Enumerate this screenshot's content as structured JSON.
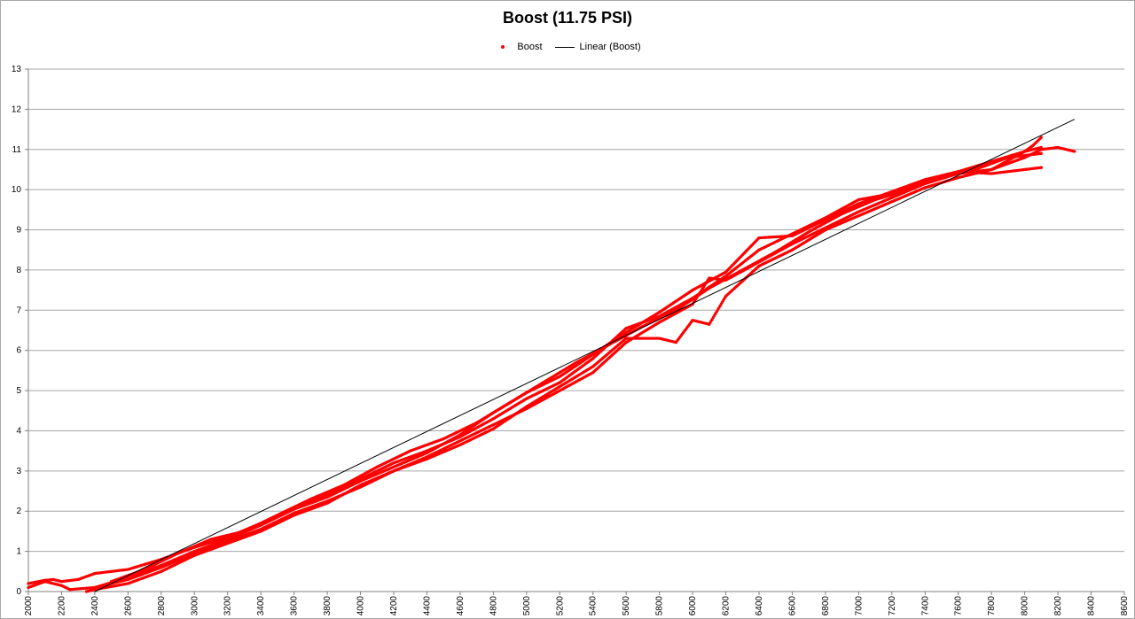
{
  "chart_data": {
    "type": "scatter",
    "title": "Boost (11.75 PSI)",
    "legend": {
      "position": "top",
      "entries": [
        "Boost",
        "Linear (Boost)"
      ]
    },
    "xlabel": "",
    "ylabel": "",
    "xlim": [
      2000,
      8600
    ],
    "ylim": [
      0,
      13
    ],
    "x_ticks": [
      2000,
      2200,
      2400,
      2600,
      2800,
      3000,
      3200,
      3400,
      3600,
      3800,
      4000,
      4200,
      4400,
      4600,
      4800,
      5000,
      5200,
      5400,
      5600,
      5800,
      6000,
      6200,
      6400,
      6600,
      6800,
      7000,
      7200,
      7400,
      7600,
      7800,
      8000,
      8200,
      8400,
      8600
    ],
    "y_ticks": [
      0,
      1,
      2,
      3,
      4,
      5,
      6,
      7,
      8,
      9,
      10,
      11,
      12,
      13
    ],
    "grid": {
      "horizontal": true,
      "vertical": false
    },
    "colors": {
      "points": "#ff0000",
      "trend": "#000000",
      "grid": "#a6a6a6"
    },
    "series": [
      {
        "name": "Boost",
        "runs": [
          {
            "x": [
              2000,
              2100,
              2150,
              2200,
              2300,
              2400,
              2600,
              2800,
              3000,
              3200,
              3400,
              3600,
              3800,
              4000,
              4200,
              4400,
              4600,
              4800,
              5000,
              5200,
              5400,
              5600,
              5800,
              6000,
              6200,
              6400,
              6600,
              6800,
              7000,
              7200,
              7400,
              7600,
              7800,
              8000,
              8050,
              8100
            ],
            "y": [
              0.2,
              0.28,
              0.3,
              0.25,
              0.3,
              0.45,
              0.55,
              0.8,
              1.1,
              1.35,
              1.7,
              2.1,
              2.4,
              2.8,
              3.2,
              3.5,
              3.85,
              4.3,
              4.8,
              5.2,
              5.8,
              6.55,
              6.85,
              7.3,
              7.85,
              8.5,
              8.9,
              9.3,
              9.75,
              9.9,
              10.2,
              10.45,
              10.7,
              10.95,
              11.1,
              11.3
            ]
          },
          {
            "x": [
              2000,
              2100,
              2200,
              2250,
              2400,
              2600,
              2800,
              3000,
              3200,
              3400,
              3600,
              3800,
              4000,
              4200,
              4400,
              4600,
              4800,
              5000,
              5200,
              5400,
              5600,
              5800,
              6000,
              6100,
              6200,
              6400,
              6600,
              6800,
              7000,
              7200,
              7400,
              7600,
              7800,
              8000,
              8100
            ],
            "y": [
              0.1,
              0.25,
              0.15,
              0.05,
              0.1,
              0.3,
              0.6,
              0.95,
              1.25,
              1.55,
              1.95,
              2.25,
              2.6,
              3.0,
              3.35,
              3.75,
              4.15,
              4.55,
              5.0,
              5.45,
              6.2,
              6.7,
              7.15,
              7.8,
              7.75,
              8.2,
              8.65,
              9.05,
              9.45,
              9.8,
              10.15,
              10.4,
              10.5,
              10.95,
              11.05
            ]
          },
          {
            "x": [
              2350,
              2400,
              2600,
              2800,
              3000,
              3200,
              3400,
              3600,
              3800,
              4000,
              4200,
              4400,
              4600,
              4800,
              5000,
              5200,
              5400,
              5600,
              5800,
              5900,
              6000,
              6100,
              6200,
              6400,
              6600,
              6800,
              7000,
              7200,
              7400,
              7600,
              7800,
              8000,
              8100,
              8200,
              8300
            ],
            "y": [
              0.0,
              0.05,
              0.2,
              0.5,
              0.9,
              1.2,
              1.5,
              1.9,
              2.2,
              2.65,
              3.0,
              3.3,
              3.65,
              4.05,
              4.6,
              5.1,
              5.6,
              6.3,
              6.3,
              6.2,
              6.75,
              6.65,
              7.35,
              8.1,
              8.5,
              9.0,
              9.35,
              9.7,
              10.05,
              10.3,
              10.5,
              10.8,
              11.0,
              11.05,
              10.95
            ]
          },
          {
            "x": [
              2400,
              2600,
              2800,
              3000,
              3200,
              3400,
              3600,
              3800,
              4000,
              4200,
              4400,
              4600,
              4800,
              5000,
              5200,
              5400,
              5600,
              5800,
              6000,
              6200,
              6400,
              6600,
              6800,
              7000,
              7200,
              7400,
              7600,
              7800,
              8000,
              8100
            ],
            "y": [
              0.1,
              0.35,
              0.65,
              1.0,
              1.3,
              1.65,
              2.05,
              2.35,
              2.75,
              3.1,
              3.45,
              3.9,
              4.45,
              4.95,
              5.35,
              5.9,
              6.45,
              6.95,
              7.5,
              7.95,
              8.8,
              8.85,
              9.25,
              9.65,
              9.95,
              10.25,
              10.45,
              10.4,
              10.5,
              10.55
            ]
          },
          {
            "x": [
              2500,
              2700,
              2900,
              3100,
              3300,
              3500,
              3700,
              3900,
              4100,
              4300,
              4500,
              4700,
              4900,
              5100,
              5300,
              5500,
              5700,
              5900,
              6100,
              6300,
              6500,
              6700,
              6900,
              7100,
              7300,
              7500,
              7700,
              7900,
              8100
            ],
            "y": [
              0.25,
              0.55,
              0.95,
              1.3,
              1.5,
              1.9,
              2.3,
              2.65,
              3.1,
              3.5,
              3.8,
              4.2,
              4.7,
              5.2,
              5.7,
              6.15,
              6.6,
              7.0,
              7.55,
              8.0,
              8.45,
              8.95,
              9.4,
              9.75,
              10.0,
              10.3,
              10.5,
              10.8,
              10.9
            ]
          }
        ]
      },
      {
        "name": "Linear (Boost)",
        "x": [
          2400,
          8300
        ],
        "y": [
          0.0,
          11.75
        ]
      }
    ]
  }
}
